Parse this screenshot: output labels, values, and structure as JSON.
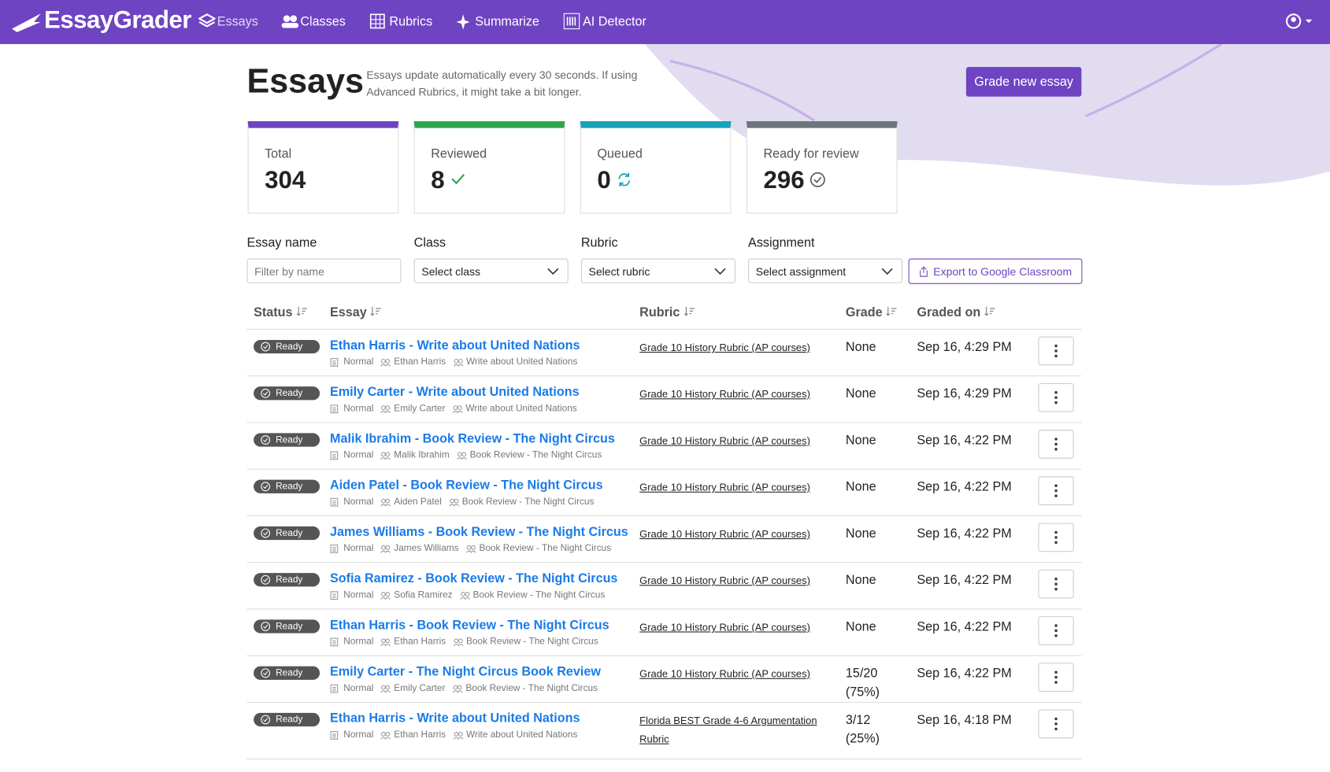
{
  "nav": {
    "brand": "EssayGrader",
    "items": [
      "Essays",
      "Classes",
      "Rubrics",
      "Summarize",
      "AI Detector"
    ]
  },
  "header": {
    "title": "Essays",
    "note": "Essays update automatically every 30 seconds. If using Advanced Rubrics, it might take a bit longer.",
    "button": "Grade new essay"
  },
  "stats": [
    {
      "label": "Total",
      "value": 304
    },
    {
      "label": "Reviewed",
      "value": 8
    },
    {
      "label": "Queued",
      "value": 0
    },
    {
      "label": "Ready for review",
      "value": 296
    }
  ],
  "filters": [
    {
      "label": "Essay name",
      "placeholder": "Filter by name"
    },
    {
      "label": "Class",
      "placeholder": "Select class"
    },
    {
      "label": "Rubric",
      "placeholder": "Select rubric"
    },
    {
      "label": "Assignment",
      "placeholder": "Select assignment"
    }
  ],
  "export_button": "Export to Google Classroom",
  "table": {
    "columns": [
      "Status",
      "Essay",
      "Rubric",
      "Grade",
      "Graded on"
    ],
    "rows": [
      {
        "status": "Ready",
        "essay": "Ethan Harris - Write about United Nations",
        "mode": "Normal",
        "student": "Ethan Harris",
        "assignment": "Write about United Nations",
        "rubric": "Grade 10 History Rubric (AP courses)",
        "grade": "None",
        "graded_on": "Sep 16, 4:29 PM"
      },
      {
        "status": "Ready",
        "essay": "Emily Carter - Write about United Nations",
        "mode": "Normal",
        "student": "Emily Carter",
        "assignment": "Write about United Nations",
        "rubric": "Grade 10 History Rubric (AP courses)",
        "grade": "None",
        "graded_on": "Sep 16, 4:29 PM"
      },
      {
        "status": "Ready",
        "essay": "Malik Ibrahim - Book Review - The Night Circus",
        "mode": "Normal",
        "student": "Malik Ibrahim",
        "assignment": "Book Review - The Night Circus",
        "rubric": "Grade 10 History Rubric (AP courses)",
        "grade": "None",
        "graded_on": "Sep 16, 4:22 PM"
      },
      {
        "status": "Ready",
        "essay": "Aiden Patel - Book Review - The Night Circus",
        "mode": "Normal",
        "student": "Aiden Patel",
        "assignment": "Book Review - The Night Circus",
        "rubric": "Grade 10 History Rubric (AP courses)",
        "grade": "None",
        "graded_on": "Sep 16, 4:22 PM"
      },
      {
        "status": "Ready",
        "essay": "James Williams - Book Review - The Night Circus",
        "mode": "Normal",
        "student": "James Williams",
        "assignment": "Book Review - The Night Circus",
        "rubric": "Grade 10 History Rubric (AP courses)",
        "grade": "None",
        "graded_on": "Sep 16, 4:22 PM"
      },
      {
        "status": "Ready",
        "essay": "Sofia Ramirez - Book Review - The Night Circus",
        "mode": "Normal",
        "student": "Sofia Ramirez",
        "assignment": "Book Review - The Night Circus",
        "rubric": "Grade 10 History Rubric (AP courses)",
        "grade": "None",
        "graded_on": "Sep 16, 4:22 PM"
      },
      {
        "status": "Ready",
        "essay": "Ethan Harris - Book Review - The Night Circus",
        "mode": "Normal",
        "student": "Ethan Harris",
        "assignment": "Book Review - The Night Circus",
        "rubric": "Grade 10 History Rubric (AP courses)",
        "grade": "None",
        "graded_on": "Sep 16, 4:22 PM"
      },
      {
        "status": "Ready",
        "essay": "Emily Carter - The Night Circus Book Review",
        "mode": "Normal",
        "student": "Emily Carter",
        "assignment": "Book Review - The Night Circus",
        "rubric": "Grade 10 History Rubric (AP courses)",
        "grade": "15/20 (75%)",
        "graded_on": "Sep 16, 4:22 PM"
      },
      {
        "status": "Ready",
        "essay": "Ethan Harris - Write about United Nations",
        "mode": "Normal",
        "student": "Ethan Harris",
        "assignment": "Write about United Nations",
        "rubric": "Florida BEST Grade 4-6 Argumentation Rubric",
        "grade": "3/12 (25%)",
        "graded_on": "Sep 16, 4:18 PM"
      }
    ]
  }
}
